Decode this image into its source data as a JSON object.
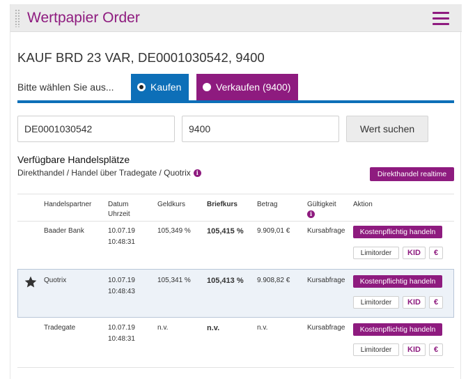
{
  "header": {
    "title": "Wertpapier Order",
    "menu_icon": "hamburger-menu-icon",
    "accent_color": "#8e1b7f"
  },
  "order": {
    "title": "KAUF BRD 23 VAR, DE0001030542, 9400"
  },
  "selection": {
    "prompt": "Bitte wählen Sie aus...",
    "buy_label": "Kaufen",
    "sell_label": "Verkaufen (9400)",
    "selected": "Kaufen",
    "buy_color": "#0d6fb8",
    "sell_color": "#8e1b7f"
  },
  "search": {
    "isin_value": "DE0001030542",
    "quantity_value": "9400",
    "button_label": "Wert suchen"
  },
  "venues": {
    "title": "Verfügbare Handelsplätze",
    "subtitle": "Direkthandel / Handel über Tradegate / Quotrix",
    "info_icon": "info-icon",
    "realtime_button": "Direkthandel realtime"
  },
  "table": {
    "headers": {
      "partner": "Handelspartner",
      "date": "Datum",
      "time": "Uhrzeit",
      "bid": "Geldkurs",
      "ask": "Briefkurs",
      "amount": "Betrag",
      "validity": "Gültigkeit",
      "action": "Aktion"
    },
    "rows": [
      {
        "partner": "Baader Bank",
        "date": "10.07.19",
        "time": "10:48:31",
        "bid": "105,349 %",
        "ask": "105,415 %",
        "amount": "9.909,01 €",
        "validity": "Kursabfrage",
        "favorite": false
      },
      {
        "partner": "Quotrix",
        "date": "10.07.19",
        "time": "10:48:43",
        "bid": "105,341 %",
        "ask": "105,413 %",
        "amount": "9.908,82 €",
        "validity": "Kursabfrage",
        "favorite": true
      },
      {
        "partner": "Tradegate",
        "date": "10.07.19",
        "time": "10:48:31",
        "bid": "n.v.",
        "ask": "n.v.",
        "amount": "n.v.",
        "validity": "Kursabfrage",
        "favorite": false
      }
    ],
    "trade_button": "Kostenpflichtig handeln",
    "limit_button": "Limitorder",
    "kid_button": "KID",
    "euro_button": "€"
  }
}
